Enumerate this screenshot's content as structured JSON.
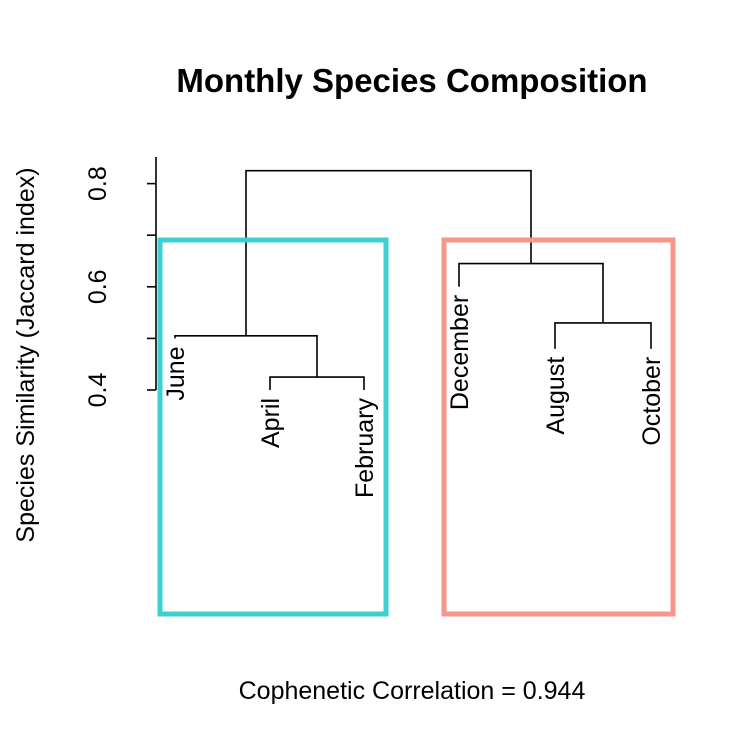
{
  "chart_data": {
    "type": "dendrogram",
    "title": "Monthly Species Composition",
    "ylabel": "Species Similarity (Jaccard index)",
    "xlabel": "Cophenetic Correlation = 0.944",
    "y_ticks": [
      "0.4",
      "0.6",
      "0.8"
    ],
    "y_tick_values": [
      0.4,
      0.6,
      0.8
    ],
    "ylim": [
      0.4,
      0.85
    ],
    "leaves": [
      "June",
      "April",
      "February",
      "December",
      "August",
      "October"
    ],
    "leaf_heights": [
      0.5,
      0.4,
      0.4,
      0.6,
      0.48,
      0.48
    ],
    "merges": [
      {
        "left": "leaf:April",
        "right": "leaf:February",
        "height": 0.425
      },
      {
        "left": "leaf:June",
        "right": "node:0",
        "height": 0.505
      },
      {
        "left": "leaf:August",
        "right": "leaf:October",
        "height": 0.53
      },
      {
        "left": "leaf:December",
        "right": "node:2",
        "height": 0.645
      },
      {
        "left": "node:1",
        "right": "node:3",
        "height": 0.825
      }
    ],
    "clusters": [
      {
        "members": [
          "June",
          "April",
          "February"
        ],
        "color": "#3ECFCF"
      },
      {
        "members": [
          "December",
          "August",
          "October"
        ],
        "color": "#F7968C"
      }
    ]
  }
}
